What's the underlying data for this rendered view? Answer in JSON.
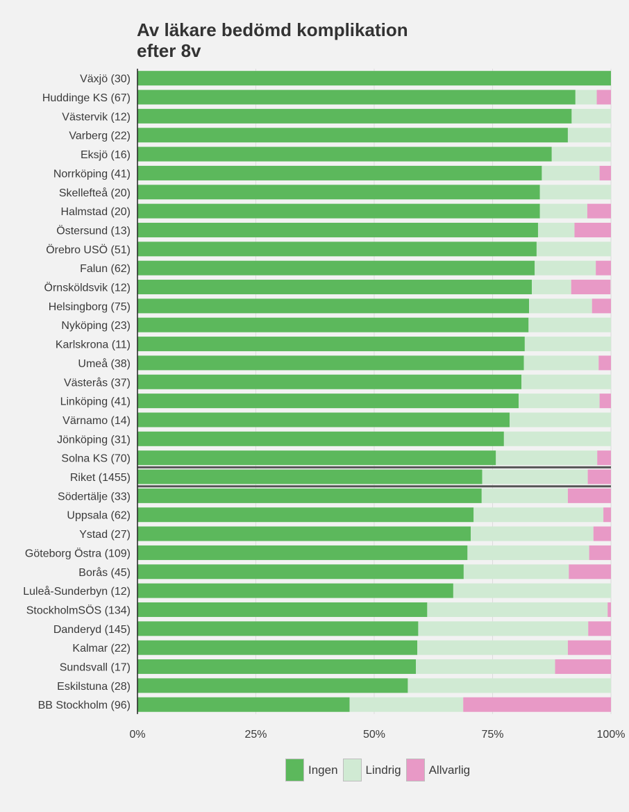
{
  "chart_data": {
    "type": "bar",
    "orientation": "horizontal",
    "stacked": true,
    "title_lines": [
      "Av läkare bedömd komplikation",
      "efter 8v"
    ],
    "xlabel": "",
    "ylabel": "",
    "xlim": [
      0,
      100
    ],
    "x_ticks": [
      "0%",
      "25%",
      "50%",
      "75%",
      "100%"
    ],
    "grid": true,
    "legend_position": "bottom",
    "highlighted_category": "Riket (1455)",
    "categories": [
      "Växjö (30)",
      "Huddinge KS (67)",
      "Västervik (12)",
      "Varberg (22)",
      "Eksjö (16)",
      "Norrköping (41)",
      "Skellefteå (20)",
      "Halmstad (20)",
      "Östersund (13)",
      "Örebro USÖ (51)",
      "Falun (62)",
      "Örnsköldsvik (12)",
      "Helsingborg (75)",
      "Nyköping (23)",
      "Karlskrona (11)",
      "Umeå (38)",
      "Västerås (37)",
      "Linköping (41)",
      "Värnamo (14)",
      "Jönköping (31)",
      "Solna KS (70)",
      "Riket (1455)",
      "Södertälje (33)",
      "Uppsala (62)",
      "Ystad (27)",
      "Göteborg Östra (109)",
      "Borås (45)",
      "Luleå-Sunderbyn (12)",
      "StockholmSÖS (134)",
      "Danderyd (145)",
      "Kalmar (22)",
      "Sundsvall (17)",
      "Eskilstuna (28)",
      "BB Stockholm (96)"
    ],
    "series": [
      {
        "name": "Ingen",
        "color": "#5cb85c",
        "values": [
          100,
          92.5,
          91.7,
          90.9,
          87.5,
          85.4,
          85.0,
          85.0,
          84.6,
          84.3,
          83.9,
          83.3,
          82.7,
          82.6,
          81.8,
          81.6,
          81.1,
          80.5,
          78.6,
          77.4,
          75.7,
          72.8,
          72.7,
          71.0,
          70.4,
          69.7,
          68.9,
          66.7,
          61.2,
          59.3,
          59.1,
          58.8,
          57.1,
          44.8
        ]
      },
      {
        "name": "Lindrig",
        "color": "#d0ead3",
        "values": [
          0,
          4.5,
          8.3,
          9.1,
          12.5,
          12.2,
          15.0,
          10.0,
          7.7,
          15.7,
          12.9,
          8.3,
          13.3,
          17.4,
          18.2,
          15.8,
          18.9,
          17.1,
          21.4,
          22.6,
          21.4,
          22.3,
          18.2,
          27.4,
          25.9,
          25.7,
          22.2,
          33.3,
          38.1,
          35.9,
          31.8,
          29.4,
          42.9,
          24.0
        ]
      },
      {
        "name": "Allvarlig",
        "color": "#e899c6",
        "values": [
          0,
          3.0,
          0,
          0,
          0,
          2.4,
          0,
          5.0,
          7.7,
          0,
          3.2,
          8.3,
          4.0,
          0,
          0,
          2.6,
          0,
          2.4,
          0,
          0,
          2.9,
          4.9,
          9.1,
          1.6,
          3.7,
          4.6,
          8.9,
          0,
          0.7,
          4.8,
          9.1,
          11.8,
          0,
          31.2
        ]
      }
    ]
  },
  "legend": {
    "items": [
      {
        "label": "Ingen",
        "color": "#5cb85c"
      },
      {
        "label": "Lindrig",
        "color": "#d0ead3"
      },
      {
        "label": "Allvarlig",
        "color": "#e899c6"
      }
    ]
  }
}
